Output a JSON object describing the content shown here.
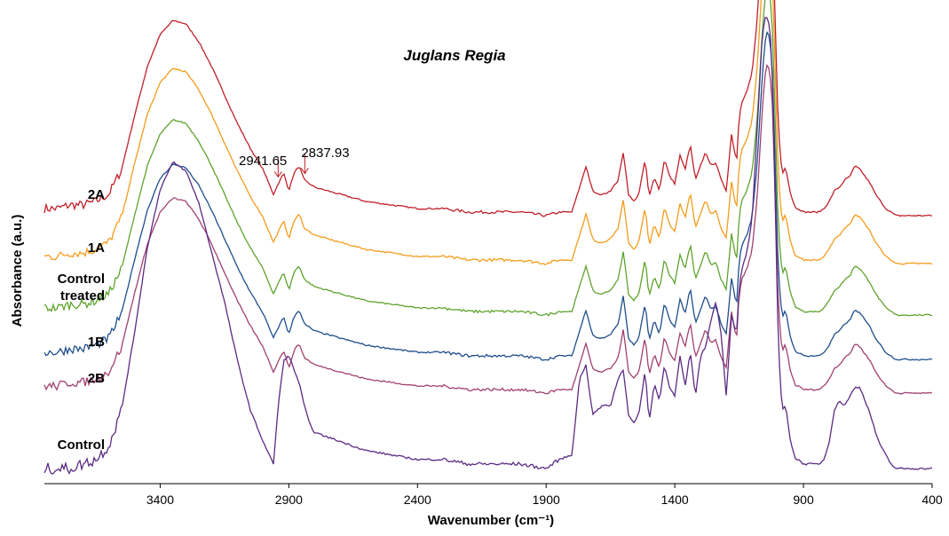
{
  "chart_data": {
    "type": "line",
    "title": "Juglans Regia",
    "xlabel": "Wavenumber (cm⁻¹)",
    "ylabel": "Absorbance (a.u.)",
    "x_reversed": true,
    "xlim": [
      3850,
      400
    ],
    "x_ticks": [
      3400,
      2900,
      2400,
      1900,
      1400,
      900,
      400
    ],
    "y_ticks": "none",
    "grid": false,
    "legend": "none",
    "annotations": [
      {
        "text": "2941.65",
        "x": 2941.65,
        "series": "2A"
      },
      {
        "text": "2837.93",
        "x": 2837.93,
        "series": "2A"
      }
    ],
    "x": [
      3850,
      3800,
      3750,
      3700,
      3650,
      3600,
      3550,
      3500,
      3450,
      3400,
      3350,
      3300,
      3250,
      3200,
      3150,
      3100,
      3050,
      3000,
      2960,
      2941,
      2920,
      2900,
      2880,
      2860,
      2840,
      2820,
      2800,
      2750,
      2700,
      2600,
      2500,
      2400,
      2300,
      2200,
      2100,
      2000,
      1900,
      1850,
      1800,
      1770,
      1745,
      1720,
      1700,
      1680,
      1650,
      1620,
      1600,
      1580,
      1560,
      1540,
      1515,
      1500,
      1480,
      1460,
      1440,
      1420,
      1400,
      1380,
      1360,
      1340,
      1320,
      1300,
      1280,
      1260,
      1240,
      1220,
      1200,
      1180,
      1160,
      1150,
      1140,
      1120,
      1100,
      1080,
      1060,
      1050,
      1040,
      1030,
      1020,
      1010,
      1000,
      990,
      980,
      970,
      960,
      950,
      940,
      930,
      920,
      900,
      880,
      860,
      840,
      820,
      800,
      780,
      760,
      740,
      720,
      700,
      680,
      660,
      640,
      620,
      600,
      580,
      560,
      540,
      520,
      500,
      480,
      460,
      440,
      420,
      400
    ],
    "series": [
      {
        "name": "2A",
        "color": "#c0202a",
        "values": [
          0.02,
          0.02,
          0.03,
          0.03,
          0.04,
          0.06,
          0.13,
          0.28,
          0.42,
          0.51,
          0.55,
          0.54,
          0.49,
          0.42,
          0.34,
          0.26,
          0.19,
          0.13,
          0.06,
          0.09,
          0.12,
          0.07,
          0.12,
          0.14,
          0.1,
          0.09,
          0.08,
          0.07,
          0.06,
          0.04,
          0.03,
          0.02,
          0.02,
          0.01,
          0.01,
          0.01,
          0.0,
          0.01,
          0.01,
          0.08,
          0.14,
          0.07,
          0.06,
          0.06,
          0.07,
          0.1,
          0.18,
          0.06,
          0.04,
          0.06,
          0.16,
          0.05,
          0.11,
          0.07,
          0.16,
          0.11,
          0.09,
          0.17,
          0.13,
          0.2,
          0.1,
          0.14,
          0.18,
          0.14,
          0.15,
          0.1,
          0.07,
          0.23,
          0.15,
          0.28,
          0.32,
          0.35,
          0.4,
          0.55,
          0.8,
          0.89,
          0.93,
          0.9,
          0.8,
          0.55,
          0.3,
          0.16,
          0.12,
          0.14,
          0.1,
          0.06,
          0.04,
          0.02,
          0.02,
          0.01,
          0.01,
          0.01,
          0.01,
          0.02,
          0.04,
          0.07,
          0.08,
          0.1,
          0.11,
          0.14,
          0.13,
          0.11,
          0.09,
          0.06,
          0.04,
          0.02,
          0.01,
          0.0,
          0.0,
          0.0,
          0.0,
          0.0,
          0.0,
          0.0,
          0.0
        ]
      },
      {
        "name": "1A",
        "color": "#f39c1c",
        "values": [
          0.02,
          0.02,
          0.03,
          0.03,
          0.04,
          0.06,
          0.13,
          0.28,
          0.42,
          0.51,
          0.55,
          0.54,
          0.49,
          0.42,
          0.34,
          0.26,
          0.19,
          0.13,
          0.06,
          0.09,
          0.12,
          0.07,
          0.12,
          0.14,
          0.1,
          0.09,
          0.08,
          0.07,
          0.06,
          0.04,
          0.03,
          0.02,
          0.02,
          0.01,
          0.01,
          0.01,
          0.0,
          0.01,
          0.01,
          0.08,
          0.14,
          0.07,
          0.06,
          0.06,
          0.07,
          0.1,
          0.18,
          0.06,
          0.04,
          0.06,
          0.16,
          0.05,
          0.11,
          0.07,
          0.16,
          0.11,
          0.09,
          0.17,
          0.13,
          0.2,
          0.1,
          0.14,
          0.18,
          0.14,
          0.15,
          0.1,
          0.07,
          0.23,
          0.15,
          0.28,
          0.32,
          0.35,
          0.4,
          0.55,
          0.8,
          0.89,
          0.93,
          0.9,
          0.8,
          0.55,
          0.3,
          0.16,
          0.12,
          0.14,
          0.1,
          0.06,
          0.04,
          0.02,
          0.02,
          0.01,
          0.01,
          0.01,
          0.01,
          0.02,
          0.04,
          0.07,
          0.08,
          0.1,
          0.11,
          0.14,
          0.13,
          0.11,
          0.09,
          0.06,
          0.04,
          0.02,
          0.01,
          0.0,
          0.0,
          0.0,
          0.0,
          0.0,
          0.0,
          0.0,
          0.0
        ]
      },
      {
        "name": "Control treated",
        "color": "#5ea32e",
        "values": [
          0.02,
          0.02,
          0.03,
          0.03,
          0.04,
          0.06,
          0.13,
          0.28,
          0.42,
          0.51,
          0.55,
          0.54,
          0.49,
          0.42,
          0.34,
          0.26,
          0.19,
          0.13,
          0.06,
          0.09,
          0.12,
          0.07,
          0.12,
          0.14,
          0.1,
          0.09,
          0.08,
          0.07,
          0.06,
          0.04,
          0.03,
          0.02,
          0.02,
          0.01,
          0.01,
          0.01,
          0.0,
          0.01,
          0.01,
          0.08,
          0.14,
          0.07,
          0.06,
          0.06,
          0.07,
          0.1,
          0.18,
          0.06,
          0.04,
          0.06,
          0.16,
          0.05,
          0.11,
          0.07,
          0.16,
          0.11,
          0.09,
          0.17,
          0.13,
          0.2,
          0.1,
          0.14,
          0.18,
          0.14,
          0.15,
          0.1,
          0.07,
          0.23,
          0.15,
          0.28,
          0.32,
          0.35,
          0.4,
          0.55,
          0.8,
          0.89,
          0.93,
          0.9,
          0.8,
          0.55,
          0.3,
          0.16,
          0.12,
          0.14,
          0.1,
          0.06,
          0.04,
          0.02,
          0.02,
          0.01,
          0.01,
          0.01,
          0.01,
          0.02,
          0.04,
          0.07,
          0.08,
          0.1,
          0.11,
          0.14,
          0.13,
          0.11,
          0.09,
          0.06,
          0.04,
          0.02,
          0.01,
          0.0,
          0.0,
          0.0,
          0.0,
          0.0,
          0.0,
          0.0,
          0.0
        ]
      },
      {
        "name": "1B",
        "color": "#1f4e8c",
        "values": [
          0.02,
          0.02,
          0.03,
          0.03,
          0.04,
          0.06,
          0.13,
          0.28,
          0.42,
          0.51,
          0.55,
          0.54,
          0.49,
          0.42,
          0.34,
          0.26,
          0.19,
          0.13,
          0.06,
          0.09,
          0.12,
          0.07,
          0.12,
          0.14,
          0.1,
          0.09,
          0.08,
          0.07,
          0.06,
          0.04,
          0.03,
          0.02,
          0.02,
          0.01,
          0.01,
          0.01,
          0.0,
          0.01,
          0.01,
          0.08,
          0.14,
          0.07,
          0.06,
          0.06,
          0.07,
          0.1,
          0.18,
          0.06,
          0.04,
          0.06,
          0.16,
          0.05,
          0.11,
          0.07,
          0.16,
          0.11,
          0.09,
          0.17,
          0.13,
          0.2,
          0.1,
          0.14,
          0.18,
          0.14,
          0.15,
          0.1,
          0.07,
          0.23,
          0.15,
          0.28,
          0.32,
          0.35,
          0.4,
          0.55,
          0.8,
          0.89,
          0.93,
          0.9,
          0.8,
          0.55,
          0.3,
          0.16,
          0.12,
          0.14,
          0.1,
          0.06,
          0.04,
          0.02,
          0.02,
          0.01,
          0.01,
          0.01,
          0.01,
          0.02,
          0.04,
          0.07,
          0.08,
          0.1,
          0.11,
          0.14,
          0.13,
          0.11,
          0.09,
          0.06,
          0.04,
          0.02,
          0.01,
          0.0,
          0.0,
          0.0,
          0.0,
          0.0,
          0.0,
          0.0,
          0.0
        ]
      },
      {
        "name": "2B",
        "color": "#a0416f",
        "values": [
          0.02,
          0.02,
          0.03,
          0.03,
          0.04,
          0.06,
          0.13,
          0.28,
          0.42,
          0.51,
          0.55,
          0.54,
          0.49,
          0.42,
          0.34,
          0.26,
          0.19,
          0.13,
          0.06,
          0.09,
          0.12,
          0.07,
          0.12,
          0.14,
          0.1,
          0.09,
          0.08,
          0.07,
          0.06,
          0.04,
          0.03,
          0.02,
          0.02,
          0.01,
          0.01,
          0.01,
          0.0,
          0.01,
          0.01,
          0.08,
          0.14,
          0.07,
          0.06,
          0.06,
          0.07,
          0.1,
          0.18,
          0.06,
          0.04,
          0.06,
          0.16,
          0.05,
          0.11,
          0.07,
          0.16,
          0.11,
          0.09,
          0.17,
          0.13,
          0.2,
          0.1,
          0.14,
          0.18,
          0.14,
          0.15,
          0.1,
          0.07,
          0.23,
          0.15,
          0.28,
          0.32,
          0.35,
          0.4,
          0.55,
          0.8,
          0.89,
          0.93,
          0.9,
          0.8,
          0.55,
          0.3,
          0.16,
          0.12,
          0.14,
          0.1,
          0.06,
          0.04,
          0.02,
          0.02,
          0.01,
          0.01,
          0.01,
          0.01,
          0.02,
          0.04,
          0.07,
          0.08,
          0.1,
          0.11,
          0.14,
          0.13,
          0.11,
          0.09,
          0.06,
          0.04,
          0.02,
          0.01,
          0.0,
          0.0,
          0.0,
          0.0,
          0.0,
          0.0,
          0.0,
          0.0
        ]
      },
      {
        "name": "Control",
        "color": "#5b2b83",
        "values": [
          0.0,
          0.0,
          0.0,
          0.01,
          0.02,
          0.05,
          0.13,
          0.3,
          0.49,
          0.62,
          0.68,
          0.66,
          0.59,
          0.48,
          0.37,
          0.24,
          0.13,
          0.06,
          0.01,
          0.14,
          0.24,
          0.25,
          0.22,
          0.19,
          0.14,
          0.1,
          0.08,
          0.07,
          0.06,
          0.04,
          0.03,
          0.02,
          0.02,
          0.01,
          0.01,
          0.01,
          0.0,
          0.02,
          0.03,
          0.2,
          0.23,
          0.12,
          0.13,
          0.14,
          0.14,
          0.2,
          0.22,
          0.12,
          0.1,
          0.12,
          0.22,
          0.1,
          0.19,
          0.15,
          0.23,
          0.18,
          0.16,
          0.25,
          0.18,
          0.26,
          0.16,
          0.25,
          0.27,
          0.33,
          0.37,
          0.3,
          0.16,
          0.34,
          0.3,
          0.4,
          0.44,
          0.48,
          0.55,
          0.75,
          0.96,
          1.0,
          1.0,
          0.98,
          0.85,
          0.6,
          0.33,
          0.18,
          0.13,
          0.14,
          0.1,
          0.06,
          0.04,
          0.02,
          0.02,
          0.01,
          0.01,
          0.01,
          0.01,
          0.02,
          0.06,
          0.13,
          0.15,
          0.14,
          0.16,
          0.18,
          0.18,
          0.15,
          0.12,
          0.08,
          0.05,
          0.03,
          0.01,
          0.0,
          0.0,
          0.0,
          0.0,
          0.0,
          0.0,
          0.0,
          0.0
        ]
      }
    ]
  }
}
